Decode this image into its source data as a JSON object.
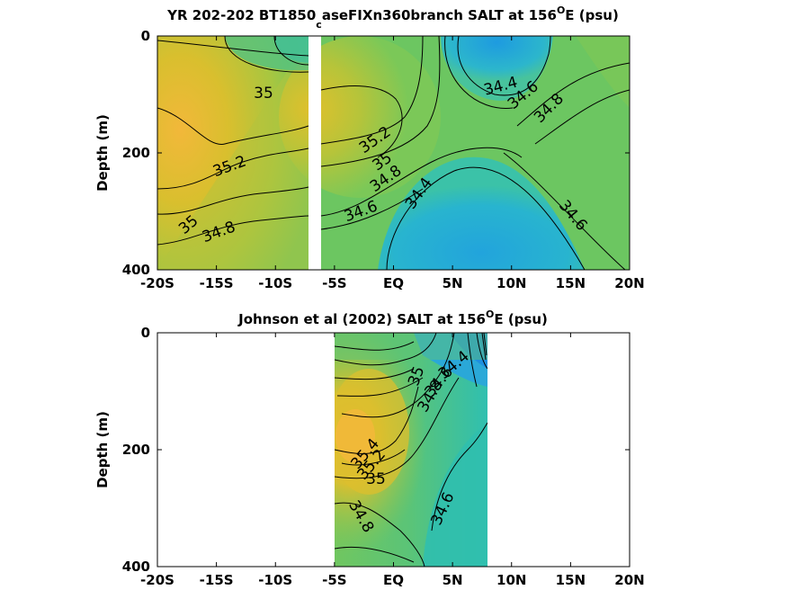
{
  "chart_data": [
    {
      "type": "heatmap",
      "title_parts": [
        "YR 202-202 BT1850",
        "c",
        "aseFIXn360branch SALT at 156",
        "O",
        "E (psu)"
      ],
      "ylabel": "Depth (m)",
      "xlim": [
        -20,
        20
      ],
      "ylim": [
        400,
        0
      ],
      "xticks": [
        "-20S",
        "-15S",
        "-10S",
        "-5S",
        "EQ",
        "5N",
        "10N",
        "15N",
        "20N"
      ],
      "yticks": [
        "0",
        "200",
        "400"
      ],
      "contour_labels": [
        "35",
        "35.2",
        "35",
        "34.8",
        "35.2",
        "35",
        "34.8",
        "34.6",
        "34.4",
        "34.4",
        "34.6",
        "34.8",
        "34.6"
      ],
      "colormap": {
        "low": "#1e9be0",
        "mid": "#40c4a0",
        "high": "#f5b83a"
      }
    },
    {
      "type": "heatmap",
      "title_parts": [
        "Johnson et al (2002) SALT at 156",
        "O",
        "E (psu)"
      ],
      "ylabel": "Depth (m)",
      "xlim": [
        -20,
        20
      ],
      "ylim": [
        400,
        0
      ],
      "xticks": [
        "-20S",
        "-15S",
        "-10S",
        "-5S",
        "EQ",
        "5N",
        "10N",
        "15N",
        "20N"
      ],
      "yticks": [
        "0",
        "200",
        "400"
      ],
      "data_extent_lat": [
        -5,
        8
      ],
      "contour_labels": [
        "34.4",
        "34.6",
        "34.8",
        "35.4",
        "35.2",
        "35",
        "34.8",
        "34.6",
        "35"
      ]
    }
  ]
}
